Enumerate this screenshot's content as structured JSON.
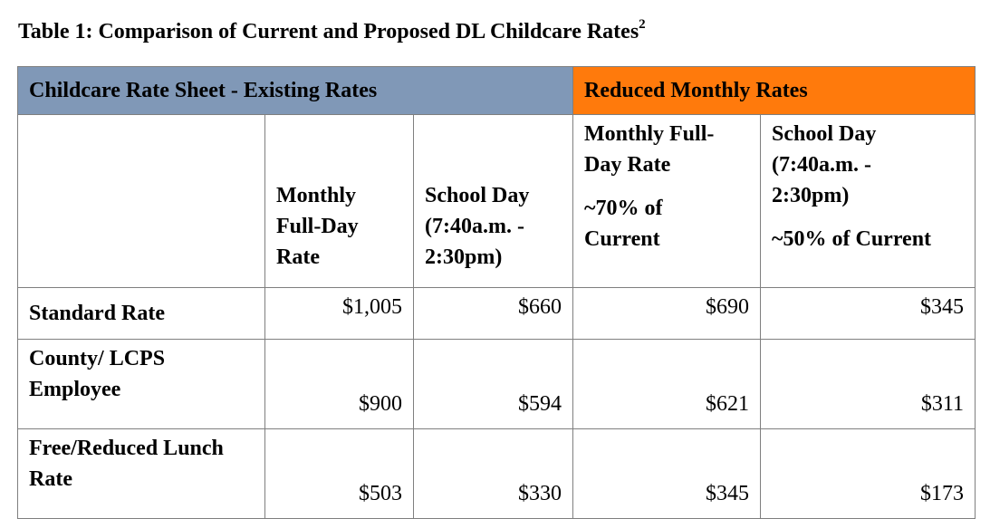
{
  "caption": {
    "text": "Table 1: Comparison of Current and Proposed DL Childcare Rates",
    "footnote": "2"
  },
  "table": {
    "group_headers": {
      "existing": "Childcare Rate Sheet - Existing Rates",
      "reduced": "Reduced Monthly Rates"
    },
    "column_headers": {
      "existing_full_day": [
        "Monthly",
        "Full-Day",
        "Rate"
      ],
      "existing_school_day": [
        "School Day",
        "(7:40a.m. -",
        "2:30pm)"
      ],
      "reduced_full_day": [
        "Monthly Full-",
        "Day Rate",
        "~70% of",
        "Current"
      ],
      "reduced_school_day": [
        "School Day",
        "(7:40a.m. -",
        "2:30pm)",
        "~50% of Current"
      ]
    },
    "rows": [
      {
        "label": [
          "Standard Rate"
        ],
        "values": [
          "$1,005",
          "$660",
          "$690",
          "$345"
        ]
      },
      {
        "label": [
          "County/ LCPS",
          "Employee"
        ],
        "values": [
          "$900",
          "$594",
          "$621",
          "$311"
        ]
      },
      {
        "label": [
          "Free/Reduced Lunch",
          "Rate"
        ],
        "values": [
          "$503",
          "$330",
          "$345",
          "$173"
        ]
      }
    ]
  },
  "colors": {
    "existing_header_bg": "#8098b7",
    "reduced_header_bg": "#ff7a0c",
    "border": "#7f7f7f"
  }
}
